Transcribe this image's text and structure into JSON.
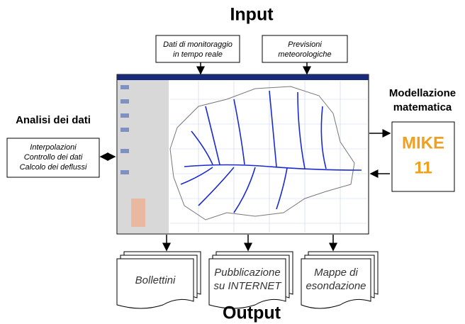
{
  "title_input": "Input",
  "title_output": "Output",
  "inputs": [
    {
      "lines": [
        "Dati di monitoraggio",
        "in tempo reale"
      ]
    },
    {
      "lines": [
        "Previsioni",
        "meteorologiche"
      ]
    }
  ],
  "analysis": {
    "title": "Analisi dei dati",
    "lines": [
      "Interpolazioni",
      "Controllo dei dati",
      "Calcolo dei deflussi"
    ]
  },
  "model": {
    "title_lines": [
      "Modellazione",
      "matematica"
    ],
    "box_lines": [
      "MIKE",
      "11"
    ]
  },
  "outputs": [
    {
      "lines": [
        "Bollettini"
      ]
    },
    {
      "lines": [
        "Pubblicazione",
        "su INTERNET"
      ]
    },
    {
      "lines": [
        "Mappe di",
        "esondazione"
      ]
    }
  ]
}
